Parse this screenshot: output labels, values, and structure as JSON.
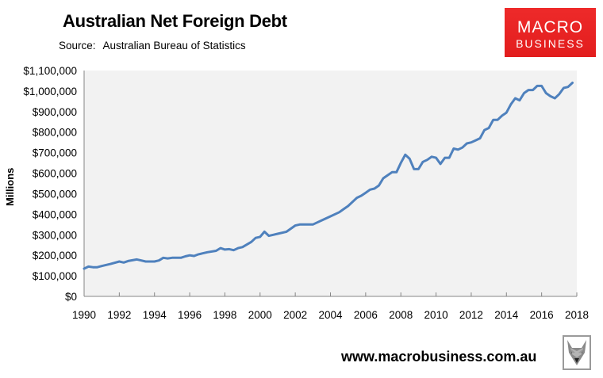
{
  "header": {
    "title": "Australian Net Foreign Debt",
    "source_label": "Source:",
    "source_value": "Australian Bureau of Statistics"
  },
  "logo": {
    "line1": "MACRO",
    "line2": "BUSINESS",
    "color": "#e82222"
  },
  "footer": {
    "url": "www.macrobusiness.com.au",
    "icon": "fox-head-icon"
  },
  "chart_data": {
    "type": "line",
    "title": "Australian Net Foreign Debt",
    "subtitle": "Source: Australian Bureau of Statistics",
    "xlabel": "",
    "ylabel": "Millions",
    "xlim": [
      1990,
      2018
    ],
    "ylim": [
      0,
      1100000
    ],
    "grid": false,
    "legend": null,
    "line_color": "#4f81bd",
    "plot_bg": "#f2f2f2",
    "x_ticks": [
      1990,
      1992,
      1994,
      1996,
      1998,
      2000,
      2002,
      2004,
      2006,
      2008,
      2010,
      2012,
      2014,
      2016,
      2018
    ],
    "y_ticks": [
      {
        "value": 0,
        "label": "$0"
      },
      {
        "value": 100000,
        "label": "$100,000"
      },
      {
        "value": 200000,
        "label": "$200,000"
      },
      {
        "value": 300000,
        "label": "$300,000"
      },
      {
        "value": 400000,
        "label": "$400,000"
      },
      {
        "value": 500000,
        "label": "$500,000"
      },
      {
        "value": 600000,
        "label": "$600,000"
      },
      {
        "value": 700000,
        "label": "$700,000"
      },
      {
        "value": 800000,
        "label": "$800,000"
      },
      {
        "value": 900000,
        "label": "$900,000"
      },
      {
        "value": 1000000,
        "label": "$1,000,000"
      },
      {
        "value": 1100000,
        "label": "$1,100,000"
      }
    ],
    "series": [
      {
        "name": "Net Foreign Debt",
        "x": [
          1990.0,
          1990.25,
          1990.5,
          1990.75,
          1991.0,
          1991.5,
          1992.0,
          1992.25,
          1992.5,
          1993.0,
          1993.25,
          1993.5,
          1994.0,
          1994.25,
          1994.5,
          1994.75,
          1995.0,
          1995.5,
          1995.75,
          1996.0,
          1996.25,
          1996.5,
          1997.0,
          1997.5,
          1997.75,
          1998.0,
          1998.25,
          1998.5,
          1998.75,
          1999.0,
          1999.5,
          1999.75,
          2000.0,
          2000.25,
          2000.5,
          2000.75,
          2001.0,
          2001.5,
          2002.0,
          2002.25,
          2002.5,
          2003.0,
          2003.25,
          2003.5,
          2004.0,
          2004.5,
          2004.75,
          2005.0,
          2005.5,
          2005.75,
          2006.0,
          2006.25,
          2006.5,
          2006.75,
          2007.0,
          2007.25,
          2007.5,
          2007.75,
          2008.0,
          2008.25,
          2008.5,
          2008.75,
          2009.0,
          2009.25,
          2009.5,
          2009.75,
          2010.0,
          2010.25,
          2010.5,
          2010.75,
          2011.0,
          2011.25,
          2011.5,
          2011.75,
          2012.0,
          2012.25,
          2012.5,
          2012.75,
          2013.0,
          2013.25,
          2013.5,
          2013.75,
          2014.0,
          2014.25,
          2014.5,
          2014.75,
          2015.0,
          2015.25,
          2015.5,
          2015.75,
          2016.0,
          2016.25,
          2016.5,
          2016.75,
          2017.0,
          2017.25,
          2017.5,
          2017.75
        ],
        "values": [
          135000,
          145000,
          142000,
          142000,
          148000,
          158000,
          170000,
          165000,
          172000,
          180000,
          175000,
          170000,
          170000,
          175000,
          188000,
          185000,
          188000,
          188000,
          195000,
          200000,
          197000,
          205000,
          215000,
          222000,
          235000,
          228000,
          230000,
          225000,
          235000,
          240000,
          265000,
          285000,
          290000,
          315000,
          295000,
          300000,
          305000,
          315000,
          345000,
          350000,
          350000,
          350000,
          360000,
          370000,
          390000,
          410000,
          425000,
          440000,
          480000,
          490000,
          505000,
          520000,
          525000,
          540000,
          575000,
          590000,
          605000,
          605000,
          650000,
          690000,
          670000,
          620000,
          620000,
          655000,
          665000,
          680000,
          675000,
          645000,
          675000,
          675000,
          720000,
          715000,
          725000,
          745000,
          750000,
          760000,
          770000,
          810000,
          820000,
          860000,
          860000,
          880000,
          895000,
          935000,
          965000,
          955000,
          990000,
          1005000,
          1005000,
          1025000,
          1025000,
          990000,
          975000,
          965000,
          985000,
          1015000,
          1020000,
          1040000
        ]
      }
    ]
  }
}
